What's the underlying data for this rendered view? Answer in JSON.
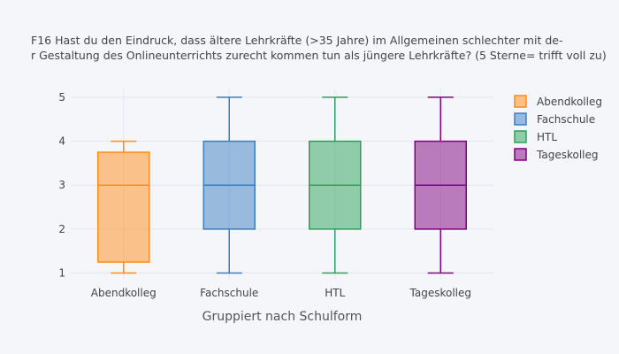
{
  "chart_data": {
    "type": "box",
    "title_lines": [
      "F16 Hast du den Eindruck, dass  ältere Lehrkräfte (>35 Jahre) im Allgemeinen schlechter mit de-",
      "r Gestaltung des  Onlineunterrichts zurecht kommen tun als jüngere Lehrkräfte? (5 Sterne= trifft voll zu)"
    ],
    "xlabel": "Gruppiert nach Schulform",
    "ylabel": "",
    "ylim": [
      0.85,
      5.2
    ],
    "yticks": [
      1,
      2,
      3,
      4,
      5
    ],
    "grid": true,
    "legend_position": "right",
    "categories": [
      "Abendkolleg",
      "Fachschule",
      "HTL",
      "Tageskolleg"
    ],
    "series": [
      {
        "name": "Abendkolleg",
        "color": "#ff8c1a",
        "min": 1,
        "q1": 1.25,
        "median": 3,
        "q3": 3.75,
        "max": 4
      },
      {
        "name": "Fachschule",
        "color": "#3a7ebf",
        "min": 1,
        "q1": 2,
        "median": 3,
        "q3": 4,
        "max": 5
      },
      {
        "name": "HTL",
        "color": "#2ca05a",
        "min": 1,
        "q1": 2,
        "median": 3,
        "q3": 4,
        "max": 5
      },
      {
        "name": "Tageskolleg",
        "color": "#800080",
        "min": 1,
        "q1": 2,
        "median": 3,
        "q3": 4,
        "max": 5
      }
    ]
  }
}
